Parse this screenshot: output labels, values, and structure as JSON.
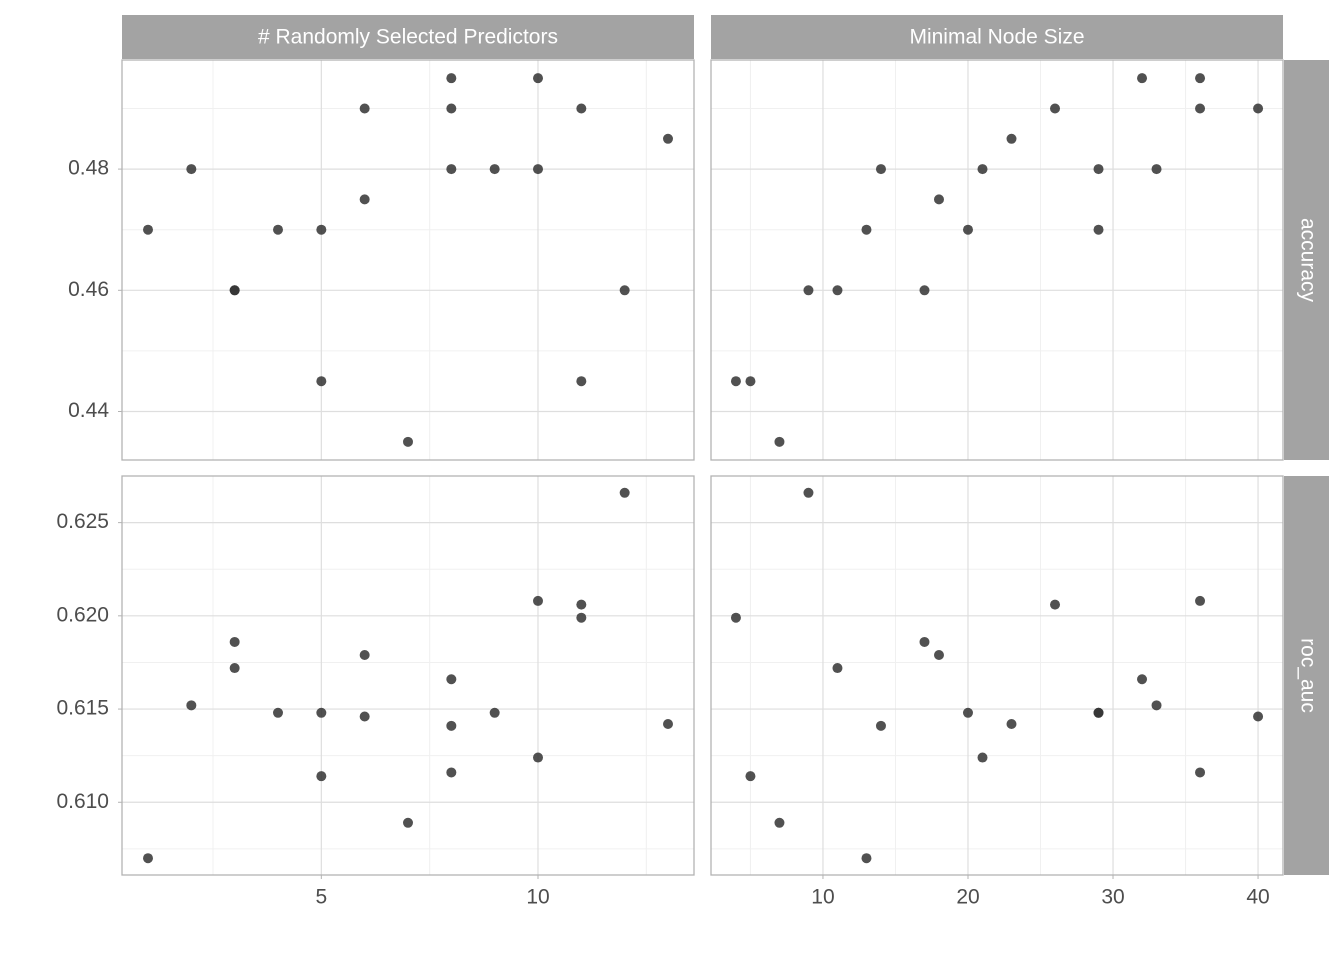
{
  "chart_data": [
    {
      "type": "scatter",
      "title": "# Randomly Selected Predictors",
      "color": "#333333",
      "x": [
        1,
        2,
        3,
        3,
        4,
        5,
        5,
        6,
        6,
        7,
        8,
        8,
        8,
        9,
        10,
        10,
        11,
        11,
        12,
        13
      ],
      "y": [
        0.47,
        0.48,
        0.46,
        0.46,
        0.47,
        0.47,
        0.445,
        0.49,
        0.475,
        0.435,
        0.495,
        0.49,
        0.48,
        0.48,
        0.495,
        0.48,
        0.49,
        0.445,
        0.46,
        0.485
      ],
      "ylim": [
        0.432,
        0.498
      ],
      "yticks": [
        0.44,
        0.46,
        0.48
      ],
      "grid": true
    },
    {
      "type": "scatter",
      "title": "Minimal Node Size",
      "facet_label": "accuracy",
      "color": "#333333",
      "x": [
        4,
        5,
        7,
        9,
        11,
        13,
        14,
        17,
        18,
        20,
        21,
        23,
        26,
        29,
        29,
        32,
        33,
        36,
        36,
        40
      ],
      "y": [
        0.445,
        0.445,
        0.435,
        0.46,
        0.46,
        0.47,
        0.48,
        0.46,
        0.475,
        0.47,
        0.48,
        0.485,
        0.49,
        0.48,
        0.47,
        0.495,
        0.48,
        0.495,
        0.49,
        0.49
      ],
      "grid": true
    },
    {
      "type": "scatter",
      "color": "#333333",
      "x": [
        1,
        2,
        3,
        3,
        4,
        5,
        5,
        6,
        6,
        7,
        8,
        8,
        8,
        9,
        10,
        10,
        11,
        11,
        12,
        13
      ],
      "y": [
        0.607,
        0.6152,
        0.6186,
        0.6172,
        0.6148,
        0.6148,
        0.6114,
        0.6179,
        0.6146,
        0.6089,
        0.6166,
        0.6141,
        0.6116,
        0.6148,
        0.6208,
        0.6124,
        0.6206,
        0.6199,
        0.6266,
        0.6142
      ],
      "xlim": [
        0.4,
        13.6
      ],
      "xticks": [
        5,
        10
      ],
      "ylim": [
        0.6061,
        0.6275
      ],
      "yticks": [
        {
          "value": 0.61,
          "label": "0.610"
        },
        0.615,
        {
          "value": 0.62,
          "label": "0.620"
        },
        0.625
      ],
      "grid": true
    },
    {
      "type": "scatter",
      "facet_label": "roc_auc",
      "color": "#333333",
      "x": [
        4,
        5,
        7,
        9,
        11,
        13,
        14,
        17,
        18,
        20,
        21,
        23,
        26,
        29,
        29,
        32,
        33,
        36,
        36,
        40
      ],
      "y": [
        0.6199,
        0.6114,
        0.6089,
        0.6266,
        0.6172,
        0.607,
        0.6141,
        0.6186,
        0.6179,
        0.6148,
        0.6124,
        0.6142,
        0.6206,
        0.6148,
        0.6148,
        0.6166,
        0.6152,
        0.6208,
        0.6116,
        0.6146
      ],
      "xlim": [
        2.28,
        41.72
      ],
      "xticks": [
        10,
        20,
        30,
        40
      ],
      "grid": true
    }
  ]
}
